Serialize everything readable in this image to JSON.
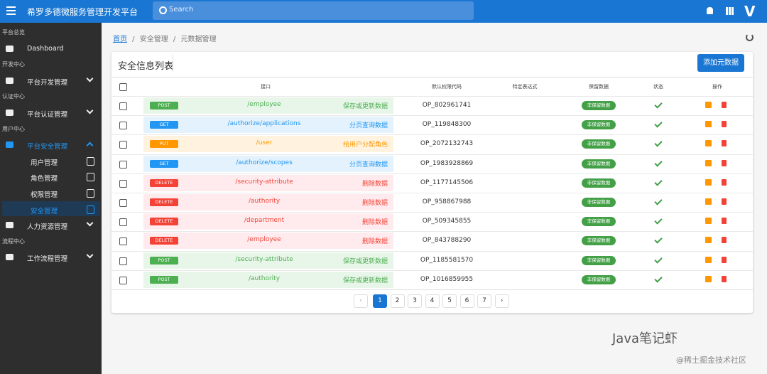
{
  "header": {
    "title": "希罗多德微服务管理开发平台",
    "search": "Search"
  },
  "sidebar": [
    {
      "section": "平台总览",
      "items": [
        {
          "label": "Dashboard"
        }
      ]
    },
    {
      "section": "开发中心",
      "items": [
        {
          "label": "平台开发管理"
        }
      ]
    },
    {
      "section": "认证中心",
      "items": [
        {
          "label": "平台认证管理"
        }
      ]
    },
    {
      "section": "用户中心",
      "items": [
        {
          "label": "平台安全管理",
          "expanded": true,
          "children": [
            {
              "label": "用户管理"
            },
            {
              "label": "角色管理"
            },
            {
              "label": "权限管理"
            },
            {
              "label": "安全管理",
              "active": true
            }
          ]
        },
        {
          "label": "人力资源管理"
        }
      ]
    },
    {
      "section": "流程中心",
      "items": [
        {
          "label": "工作流程管理"
        }
      ]
    }
  ],
  "breadcrumb": [
    "首页",
    "安全管理",
    "元数据管理"
  ],
  "card": {
    "title": "安全信息列表",
    "button": "添加元数据"
  },
  "table": {
    "columns": [
      "接口",
      "默认权限代码",
      "特定表达式",
      "保留数据",
      "状态",
      "操作"
    ],
    "rows": [
      {
        "method": "POST",
        "path": "/employee",
        "desc": "保存或更新数据",
        "code": "OP_802961741",
        "reserved": "非保留数据",
        "color": "#4caf50",
        "bg": "#e8f5e9"
      },
      {
        "method": "GET",
        "path": "/authorize/applications",
        "desc": "分页查询数据",
        "code": "OP_119848300",
        "reserved": "非保留数据",
        "color": "#2196f3",
        "bg": "#e3f2fd"
      },
      {
        "method": "PUT",
        "path": "/user",
        "desc": "给用户分配角色",
        "code": "OP_2072132743",
        "reserved": "非保留数据",
        "color": "#ff9800",
        "bg": "#fff3e0"
      },
      {
        "method": "GET",
        "path": "/authorize/scopes",
        "desc": "分页查询数据",
        "code": "OP_1983928869",
        "reserved": "非保留数据",
        "color": "#2196f3",
        "bg": "#e3f2fd"
      },
      {
        "method": "DELETE",
        "path": "/security-attribute",
        "desc": "删除数据",
        "code": "OP_1177145506",
        "reserved": "非保留数据",
        "color": "#f44336",
        "bg": "#ffebee"
      },
      {
        "method": "DELETE",
        "path": "/authority",
        "desc": "删除数据",
        "code": "OP_958867988",
        "reserved": "非保留数据",
        "color": "#f44336",
        "bg": "#ffebee"
      },
      {
        "method": "DELETE",
        "path": "/department",
        "desc": "删除数据",
        "code": "OP_509345855",
        "reserved": "非保留数据",
        "color": "#f44336",
        "bg": "#ffebee"
      },
      {
        "method": "DELETE",
        "path": "/employee",
        "desc": "删除数据",
        "code": "OP_843788290",
        "reserved": "非保留数据",
        "color": "#f44336",
        "bg": "#ffebee"
      },
      {
        "method": "POST",
        "path": "/security-attribute",
        "desc": "保存或更新数据",
        "code": "OP_1185581570",
        "reserved": "非保留数据",
        "color": "#4caf50",
        "bg": "#e8f5e9"
      },
      {
        "method": "POST",
        "path": "/authority",
        "desc": "保存或更新数据",
        "code": "OP_1016859955",
        "reserved": "非保留数据",
        "color": "#4caf50",
        "bg": "#e8f5e9"
      }
    ]
  },
  "pagination": {
    "pages": [
      1,
      2,
      3,
      4,
      5,
      6,
      7
    ],
    "current": 1
  },
  "watermark": {
    "brand": "Java笔记虾",
    "source": "@稀土掘金技术社区"
  }
}
